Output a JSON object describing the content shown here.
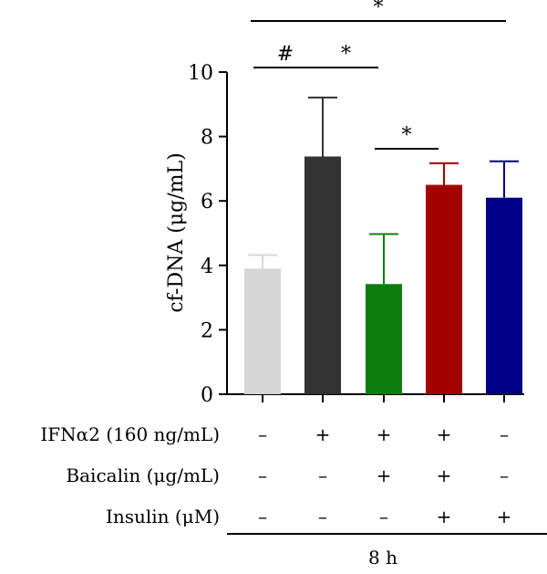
{
  "chart_data": {
    "type": "bar",
    "ylabel": "cf-DNA (μg/mL)",
    "ylim": [
      0,
      10
    ],
    "yticks": [
      0,
      2,
      4,
      6,
      8,
      10
    ],
    "grid": false,
    "bars": [
      {
        "value": 3.9,
        "error": 0.42,
        "color": "#d6d6d6"
      },
      {
        "value": 7.38,
        "error": 1.83,
        "color": "#333333"
      },
      {
        "value": 3.42,
        "error": 1.55,
        "color": "#0e7d11"
      },
      {
        "value": 6.5,
        "error": 0.67,
        "color": "#a30000"
      },
      {
        "value": 6.1,
        "error": 1.13,
        "color": "#00008a"
      }
    ],
    "conditions": [
      {
        "label": "IFNα2 (160 ng/mL)",
        "marks": [
          "–",
          "+",
          "+",
          "+",
          "–"
        ]
      },
      {
        "label": "Baicalin (μg/mL)",
        "marks": [
          "–",
          "–",
          "+",
          "+",
          "–"
        ]
      },
      {
        "label": "Insulin (μM)",
        "marks": [
          "–",
          "–",
          "–",
          "+",
          "+"
        ]
      }
    ],
    "group_label": "8 h",
    "significance": [
      {
        "from": 0,
        "to": 1,
        "symbol": "#",
        "level": 0
      },
      {
        "from": 1,
        "to": 2,
        "symbol": "*",
        "level": 0
      },
      {
        "from": 2,
        "to": 3,
        "symbol": "*",
        "level": 1
      },
      {
        "from": 0,
        "to": 4,
        "symbol": "*",
        "level": 2
      }
    ]
  }
}
